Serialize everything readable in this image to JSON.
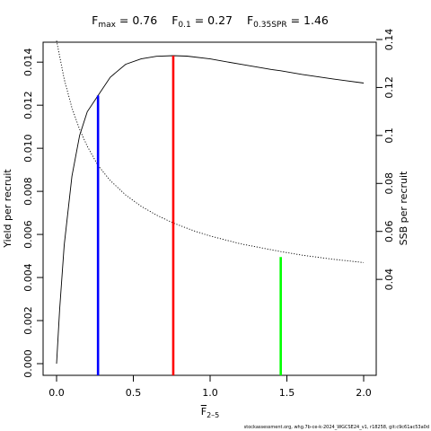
{
  "chart_data": {
    "type": "line",
    "title_parts": {
      "fmax_label": "F",
      "fmax_sub": "max",
      "fmax_value": " = 0.76",
      "f01_label": "F",
      "f01_sub": "0.1",
      "f01_value": " = 0.27",
      "fspr_label": "F",
      "fspr_sub": "0.35SPR",
      "fspr_value": " = 1.46"
    },
    "xlabel_main": "F",
    "xlabel_sub": "2–5",
    "ylabel_left": "Yield per recruit",
    "ylabel_right": "SSB per recruit",
    "xlim": [
      0,
      2
    ],
    "ylim_left": [
      0,
      0.0143
    ],
    "ylim_right": [
      0,
      0.14
    ],
    "x_ticks": [
      {
        "value": 0,
        "label": "0.0"
      },
      {
        "value": 0.5,
        "label": "0.5"
      },
      {
        "value": 1.0,
        "label": "1.0"
      },
      {
        "value": 1.5,
        "label": "1.5"
      },
      {
        "value": 2.0,
        "label": "2.0"
      }
    ],
    "y_left_ticks": [
      {
        "value": 0.0,
        "label": "0.000"
      },
      {
        "value": 0.002,
        "label": "0.002"
      },
      {
        "value": 0.004,
        "label": "0.004"
      },
      {
        "value": 0.006,
        "label": "0.006"
      },
      {
        "value": 0.008,
        "label": "0.008"
      },
      {
        "value": 0.01,
        "label": "0.010"
      },
      {
        "value": 0.012,
        "label": "0.012"
      },
      {
        "value": 0.014,
        "label": "0.014"
      }
    ],
    "y_right_ticks": [
      {
        "value": 0.04,
        "label": "0.04"
      },
      {
        "value": 0.06,
        "label": "0.06"
      },
      {
        "value": 0.08,
        "label": "0.08"
      },
      {
        "value": 0.1,
        "label": "0.1"
      },
      {
        "value": 0.12,
        "label": "0.12"
      },
      {
        "value": 0.14,
        "label": "0.14"
      }
    ],
    "series": [
      {
        "line_style": "solid",
        "axis": "left",
        "x": [
          0.0,
          0.02,
          0.05,
          0.1,
          0.15,
          0.2,
          0.27,
          0.35,
          0.45,
          0.55,
          0.65,
          0.76,
          0.85,
          1.0,
          1.2,
          1.4,
          1.46,
          1.6,
          1.8,
          2.0
        ],
        "y": [
          0.0,
          0.0025,
          0.0055,
          0.0087,
          0.0106,
          0.0117,
          0.01245,
          0.0133,
          0.0139,
          0.01415,
          0.01427,
          0.0143,
          0.01428,
          0.01415,
          0.0139,
          0.01366,
          0.0136,
          0.01343,
          0.01322,
          0.01303
        ]
      },
      {
        "line_style": "dotted",
        "axis": "right",
        "x": [
          0.0,
          0.05,
          0.1,
          0.15,
          0.2,
          0.27,
          0.35,
          0.45,
          0.55,
          0.65,
          0.76,
          0.9,
          1.0,
          1.2,
          1.46,
          1.6,
          1.8,
          2.0
        ],
        "y": [
          0.1395,
          0.1235,
          0.1115,
          0.1025,
          0.0955,
          0.0875,
          0.0812,
          0.0752,
          0.0705,
          0.0668,
          0.0635,
          0.0601,
          0.0581,
          0.0548,
          0.0516,
          0.0501,
          0.0484,
          0.047
        ]
      }
    ],
    "reference_lines": [
      {
        "name": "F0.1",
        "x": 0.27,
        "y_top": 0.01245,
        "color": "#0000ff"
      },
      {
        "name": "Fmax",
        "x": 0.76,
        "y_top": 0.0143,
        "color": "#ff0000"
      },
      {
        "name": "F0.35SPR",
        "x": 1.46,
        "y_top": 0.00495,
        "color": "#00ff00"
      }
    ],
    "grid": false,
    "legend": "none"
  },
  "footer_text": "stockassessment.org, whg.7b-ce-k-2024_WGCSE24_v1, r18258, git:c9c61ac53a0d"
}
